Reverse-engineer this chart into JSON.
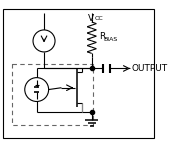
{
  "bg_color": "#ffffff",
  "border_color": "#000000",
  "gray_color": "#888888",
  "dashed_color": "#666666",
  "text_color": "#000000",
  "vcc_label": "V",
  "vcc_sub": "CC",
  "rbias_label": "R",
  "rbias_sub": "BIAS",
  "output_label": "OUTPUT",
  "fig_width": 1.71,
  "fig_height": 1.47,
  "dpi": 100
}
